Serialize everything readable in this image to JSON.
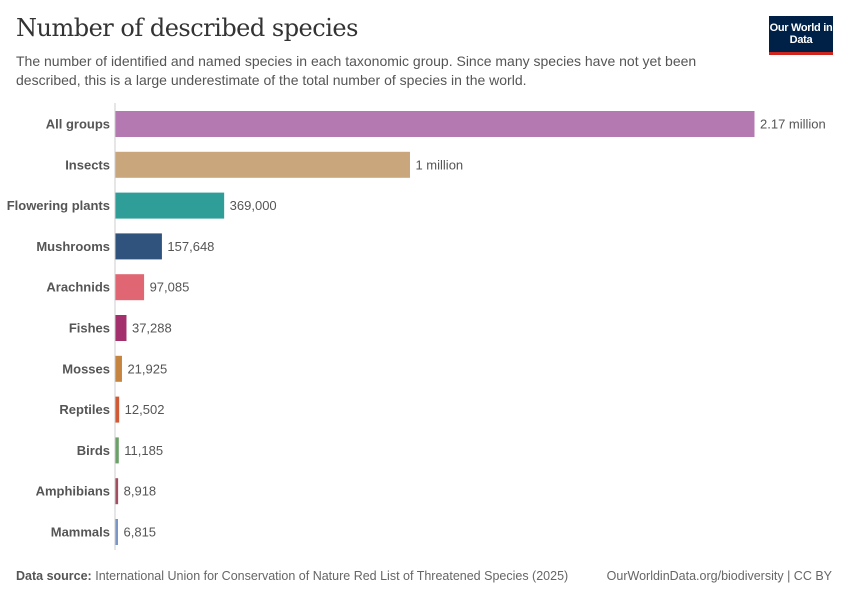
{
  "header": {
    "title": "Number of described species",
    "subtitle": "The number of identified and named species in each taxonomic group. Since many species have not yet been described, this is a large underestimate of the total number of species in the world.",
    "logo": "Our World in Data"
  },
  "footer": {
    "source_label": "Data source:",
    "source": "International Union for Conservation of Nature Red List of Threatened Species (2025)",
    "link": "OurWorldinData.org/biodiversity | CC BY"
  },
  "chart_data": {
    "type": "bar",
    "orientation": "horizontal",
    "categories": [
      "All groups",
      "Insects",
      "Flowering plants",
      "Mushrooms",
      "Arachnids",
      "Fishes",
      "Mosses",
      "Reptiles",
      "Birds",
      "Amphibians",
      "Mammals"
    ],
    "values": [
      2170000,
      1000000,
      369000,
      157648,
      97085,
      37288,
      21925,
      12502,
      11185,
      8918,
      6815
    ],
    "labels": [
      "2.17 million",
      "1 million",
      "369,000",
      "157,648",
      "97,085",
      "37,288",
      "21,925",
      "12,502",
      "11,185",
      "8,918",
      "6,815"
    ],
    "colors": [
      "#b479b1",
      "#c9a67b",
      "#2f9e98",
      "#30537e",
      "#e06673",
      "#a3306c",
      "#c5843f",
      "#d05a35",
      "#6ba168",
      "#a34e60",
      "#7a96c7"
    ],
    "xlim": [
      0,
      2170000
    ],
    "grid": false,
    "legend": "none"
  }
}
